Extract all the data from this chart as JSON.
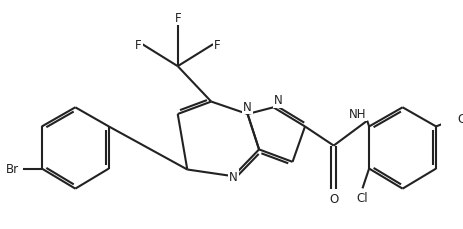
{
  "background_color": "#ffffff",
  "line_color": "#222222",
  "line_width": 1.5,
  "font_size": 8.5,
  "figsize": [
    4.64,
    2.3
  ],
  "dpi": 100,
  "xlim": [
    0,
    9.28
  ],
  "ylim": [
    0,
    4.6
  ]
}
